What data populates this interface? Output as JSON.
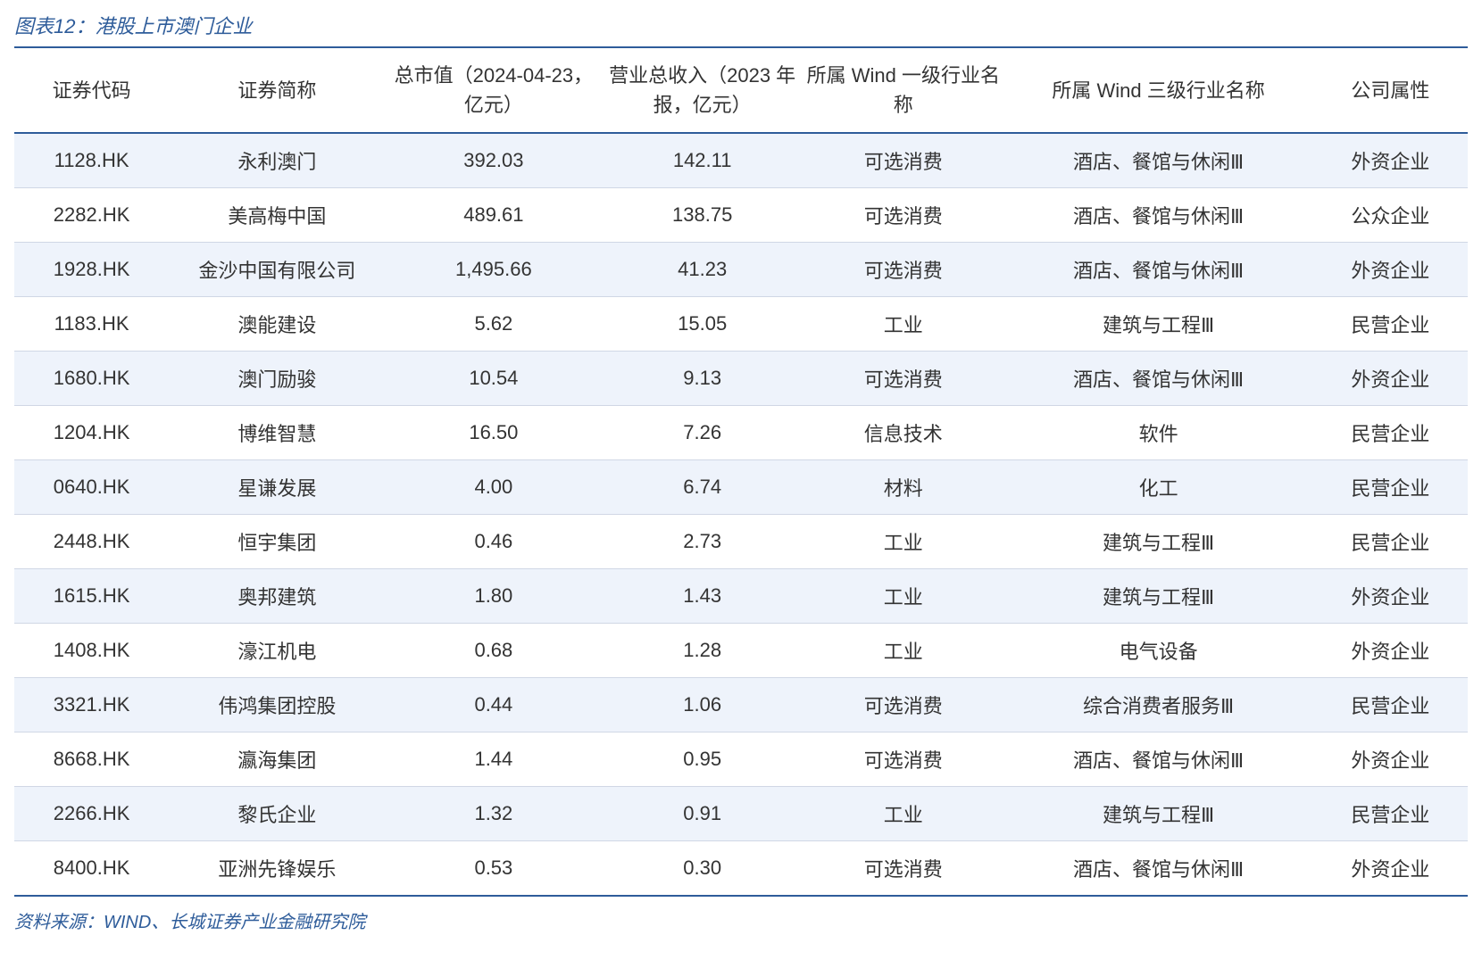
{
  "title": "图表12：港股上市澳门企业",
  "source": "资料来源：WIND、长城证券产业金融研究院",
  "table": {
    "type": "table",
    "header_border_color": "#2e5c9a",
    "row_border_color": "#d0d7e5",
    "odd_row_bg": "#eef3fb",
    "even_row_bg": "#ffffff",
    "title_color": "#2e5c9a",
    "text_color": "#333333",
    "font_size_header": 22,
    "font_size_cell": 22,
    "columns": [
      "证券代码",
      "证券简称",
      "总市值（2024-04-23，亿元）",
      "营业总收入（2023 年报，亿元）",
      "所属 Wind 一级行业名称",
      "所属 Wind 三级行业名称",
      "公司属性"
    ],
    "column_widths_pct": [
      10,
      14,
      14,
      13,
      13,
      20,
      10
    ],
    "rows": [
      [
        "1128.HK",
        "永利澳门",
        "392.03",
        "142.11",
        "可选消费",
        "酒店、餐馆与休闲Ⅲ",
        "外资企业"
      ],
      [
        "2282.HK",
        "美高梅中国",
        "489.61",
        "138.75",
        "可选消费",
        "酒店、餐馆与休闲Ⅲ",
        "公众企业"
      ],
      [
        "1928.HK",
        "金沙中国有限公司",
        "1,495.66",
        "41.23",
        "可选消费",
        "酒店、餐馆与休闲Ⅲ",
        "外资企业"
      ],
      [
        "1183.HK",
        "澳能建设",
        "5.62",
        "15.05",
        "工业",
        "建筑与工程Ⅲ",
        "民营企业"
      ],
      [
        "1680.HK",
        "澳门励骏",
        "10.54",
        "9.13",
        "可选消费",
        "酒店、餐馆与休闲Ⅲ",
        "外资企业"
      ],
      [
        "1204.HK",
        "博维智慧",
        "16.50",
        "7.26",
        "信息技术",
        "软件",
        "民营企业"
      ],
      [
        "0640.HK",
        "星谦发展",
        "4.00",
        "6.74",
        "材料",
        "化工",
        "民营企业"
      ],
      [
        "2448.HK",
        "恒宇集团",
        "0.46",
        "2.73",
        "工业",
        "建筑与工程Ⅲ",
        "民营企业"
      ],
      [
        "1615.HK",
        "奥邦建筑",
        "1.80",
        "1.43",
        "工业",
        "建筑与工程Ⅲ",
        "外资企业"
      ],
      [
        "1408.HK",
        "濠江机电",
        "0.68",
        "1.28",
        "工业",
        "电气设备",
        "外资企业"
      ],
      [
        "3321.HK",
        "伟鸿集团控股",
        "0.44",
        "1.06",
        "可选消费",
        "综合消费者服务Ⅲ",
        "民营企业"
      ],
      [
        "8668.HK",
        "瀛海集团",
        "1.44",
        "0.95",
        "可选消费",
        "酒店、餐馆与休闲Ⅲ",
        "外资企业"
      ],
      [
        "2266.HK",
        "黎氏企业",
        "1.32",
        "0.91",
        "工业",
        "建筑与工程Ⅲ",
        "民营企业"
      ],
      [
        "8400.HK",
        "亚洲先锋娱乐",
        "0.53",
        "0.30",
        "可选消费",
        "酒店、餐馆与休闲Ⅲ",
        "外资企业"
      ]
    ]
  }
}
